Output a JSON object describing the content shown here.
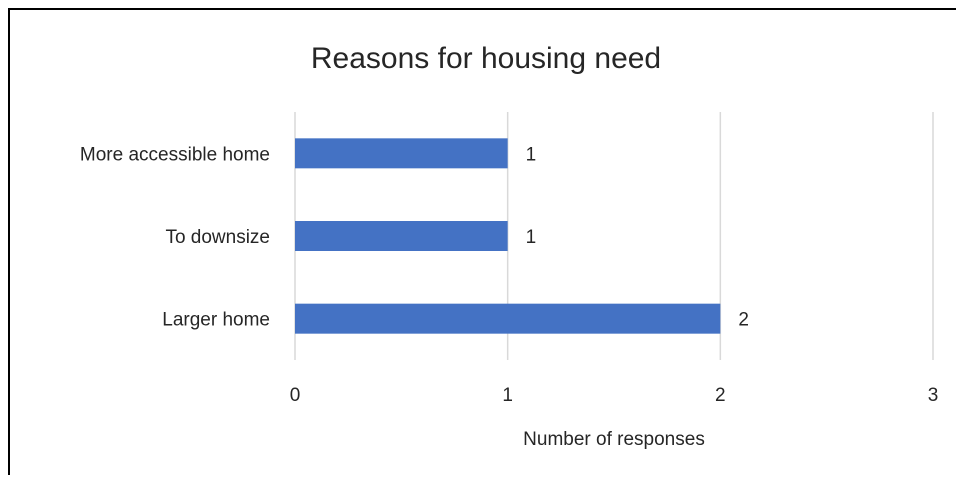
{
  "chart_data": {
    "type": "bar",
    "orientation": "horizontal",
    "title": "Reasons for housing need",
    "xlabel": "Number of responses",
    "ylabel": "",
    "categories": [
      "More accessible home",
      "To downsize",
      "Larger home"
    ],
    "values": [
      1,
      1,
      2
    ],
    "xlim": [
      0,
      3
    ],
    "xticks": [
      "0",
      "1",
      "2",
      "3"
    ],
    "grid": true,
    "legend": "none",
    "data_labels": [
      "1",
      "1",
      "2"
    ],
    "bar_color": "#4472C4",
    "grid_color": "#D9D9D9"
  }
}
